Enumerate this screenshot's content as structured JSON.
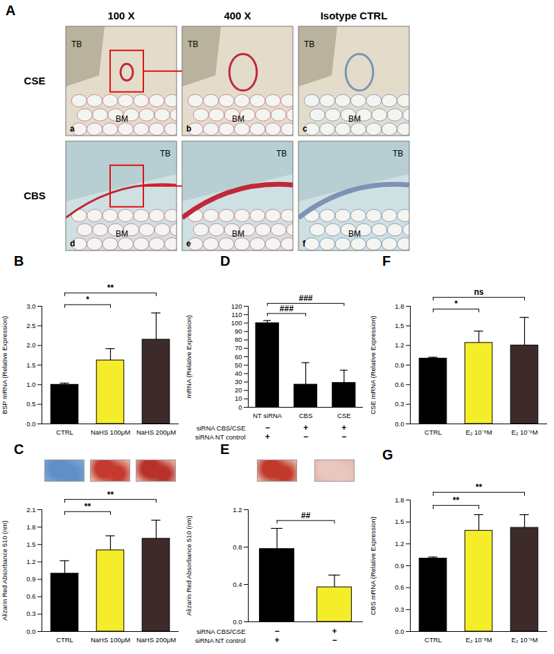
{
  "chart_data": [
    {
      "type": "bar",
      "title": "B",
      "categories": [
        "CTRL",
        "NaHS 100μM",
        "NaHS 200μM"
      ],
      "values": [
        1.0,
        1.62,
        2.15
      ],
      "errors": [
        0.04,
        0.3,
        0.68
      ],
      "colors": [
        "#000000",
        "#f5ec2a",
        "#3d2b2b"
      ],
      "y_label": "BSP mRNA (Relative Expression)",
      "ylim": [
        0,
        3
      ],
      "yticks": [
        {
          "value": 0,
          "label": "0.0"
        },
        {
          "value": 0.5,
          "label": "0.5"
        },
        {
          "value": 1,
          "label": "1.0"
        },
        {
          "value": 1.5,
          "label": "1.5"
        },
        {
          "value": 2,
          "label": "2.0"
        },
        {
          "value": 2.5,
          "label": "2.5"
        },
        {
          "value": 3,
          "label": "3.0"
        }
      ],
      "significance": [
        {
          "between": [
            0,
            1
          ],
          "label": "*"
        },
        {
          "between": [
            0,
            2
          ],
          "label": "**"
        }
      ]
    },
    {
      "type": "bar",
      "title": "D",
      "categories": [
        "NT siRNA",
        "CBS",
        "CSE"
      ],
      "values": [
        100,
        27,
        29
      ],
      "errors": [
        3,
        26,
        15
      ],
      "colors": [
        "#000000",
        "#000000",
        "#000000"
      ],
      "y_label": "mRNA (Relative Expression)",
      "ylim": [
        0,
        120
      ],
      "yticks": [
        0,
        10,
        20,
        30,
        40,
        50,
        60,
        70,
        80,
        90,
        100,
        110,
        120
      ],
      "significance": [
        {
          "between": [
            0,
            1
          ],
          "label": "###"
        },
        {
          "between": [
            0,
            2
          ],
          "label": "###"
        }
      ],
      "condition_rows": [
        {
          "label": "siRNA CBS/CSE",
          "values": [
            "−",
            "+",
            "+"
          ]
        },
        {
          "label": "siRNA NT control",
          "values": [
            "+",
            "−",
            "−"
          ]
        }
      ]
    },
    {
      "type": "bar",
      "title": "F",
      "categories": [
        "CTRL",
        "E₂ 10⁻⁸M",
        "E₂ 10⁻⁹M"
      ],
      "values": [
        1.0,
        1.24,
        1.2
      ],
      "errors": [
        0.02,
        0.18,
        0.43
      ],
      "colors": [
        "#000000",
        "#f5ec2a",
        "#3d2b2b"
      ],
      "y_label": "CSE mRNA (Relative Expression)",
      "ylim": [
        0,
        1.8
      ],
      "yticks": [
        {
          "value": 0,
          "label": "0.0"
        },
        {
          "value": 0.3,
          "label": "0.3"
        },
        {
          "value": 0.6,
          "label": "0.6"
        },
        {
          "value": 0.9,
          "label": "0.9"
        },
        {
          "value": 1.2,
          "label": "1.2"
        },
        {
          "value": 1.5,
          "label": "1.5"
        },
        {
          "value": 1.8,
          "label": "1.8"
        }
      ],
      "significance": [
        {
          "between": [
            0,
            1
          ],
          "label": "*"
        },
        {
          "between": [
            0,
            2
          ],
          "label": "ns"
        }
      ]
    },
    {
      "type": "bar",
      "title": "C",
      "categories": [
        "CTRL",
        "NaHS 100μM",
        "NaHS 200μM"
      ],
      "values": [
        1.0,
        1.4,
        1.6
      ],
      "errors": [
        0.22,
        0.25,
        0.32
      ],
      "colors": [
        "#000000",
        "#f5ec2a",
        "#3d2b2b"
      ],
      "y_label": "Alizarin Red Absorbance 510 (nm)",
      "ylim": [
        0,
        2.1
      ],
      "yticks": [
        {
          "value": 0,
          "label": "0.0"
        },
        {
          "value": 0.3,
          "label": "0.3"
        },
        {
          "value": 0.6,
          "label": "0.6"
        },
        {
          "value": 0.9,
          "label": "0.9"
        },
        {
          "value": 1.2,
          "label": "1.2"
        },
        {
          "value": 1.5,
          "label": "1.5"
        },
        {
          "value": 1.8,
          "label": "1.8"
        },
        {
          "value": 2.1,
          "label": "2.1"
        }
      ],
      "significance": [
        {
          "between": [
            0,
            1
          ],
          "label": "**"
        },
        {
          "between": [
            0,
            2
          ],
          "label": "**"
        }
      ]
    },
    {
      "type": "bar",
      "title": "E",
      "categories": [
        null,
        null
      ],
      "values": [
        0.78,
        0.37
      ],
      "errors": [
        0.22,
        0.13
      ],
      "colors": [
        "#000000",
        "#f5ec2a"
      ],
      "y_label": "Alizarin Red Absorbance 510 (nm)",
      "ylim": [
        0,
        1.2
      ],
      "yticks": [
        {
          "value": 0,
          "label": "0.0"
        },
        {
          "value": 0.4,
          "label": "0.4"
        },
        {
          "value": 0.8,
          "label": "0.8"
        },
        {
          "value": 1.2,
          "label": "1.2"
        }
      ],
      "significance": [
        {
          "between": [
            0,
            1
          ],
          "label": "##"
        }
      ],
      "condition_rows": [
        {
          "label": "siRNA CBS/CSE",
          "values": [
            "−",
            "+"
          ]
        },
        {
          "label": "siRNA NT control",
          "values": [
            "+",
            "−"
          ]
        }
      ]
    },
    {
      "type": "bar",
      "title": "G",
      "categories": [
        "CTRL",
        "E₂ 10⁻⁸M",
        "E₂ 10⁻⁹M"
      ],
      "values": [
        1.0,
        1.38,
        1.42
      ],
      "errors": [
        0.02,
        0.22,
        0.18
      ],
      "colors": [
        "#000000",
        "#f5ec2a",
        "#3d2b2b"
      ],
      "y_label": "CBS mRNA (Relative Expression)",
      "ylim": [
        0,
        1.8
      ],
      "yticks": [
        {
          "value": 0,
          "label": "0.0"
        },
        {
          "value": 0.3,
          "label": "0.3"
        },
        {
          "value": 0.6,
          "label": "0.6"
        },
        {
          "value": 0.9,
          "label": "0.9"
        },
        {
          "value": 1.2,
          "label": "1.2"
        },
        {
          "value": 1.5,
          "label": "1.5"
        },
        {
          "value": 1.8,
          "label": "1.8"
        }
      ],
      "significance": [
        {
          "between": [
            0,
            1
          ],
          "label": "**"
        },
        {
          "between": [
            0,
            2
          ],
          "label": "**"
        }
      ]
    }
  ],
  "image_panel": {
    "title": "A",
    "columns": [
      "100 X",
      "400 X",
      "Isotype CTRL"
    ],
    "rows": [
      "CSE",
      "CBS"
    ],
    "images": [
      {
        "tag": "a",
        "labels": [
          "TB",
          "BM"
        ]
      },
      {
        "tag": "b",
        "labels": [
          "TB",
          "BM"
        ]
      },
      {
        "tag": "c",
        "labels": [
          "TB",
          "BM"
        ]
      },
      {
        "tag": "d",
        "labels": [
          "TB",
          "BM"
        ]
      },
      {
        "tag": "e",
        "labels": [
          "TB",
          "BM"
        ]
      },
      {
        "tag": "f",
        "labels": [
          "TB",
          "BM"
        ]
      }
    ]
  }
}
